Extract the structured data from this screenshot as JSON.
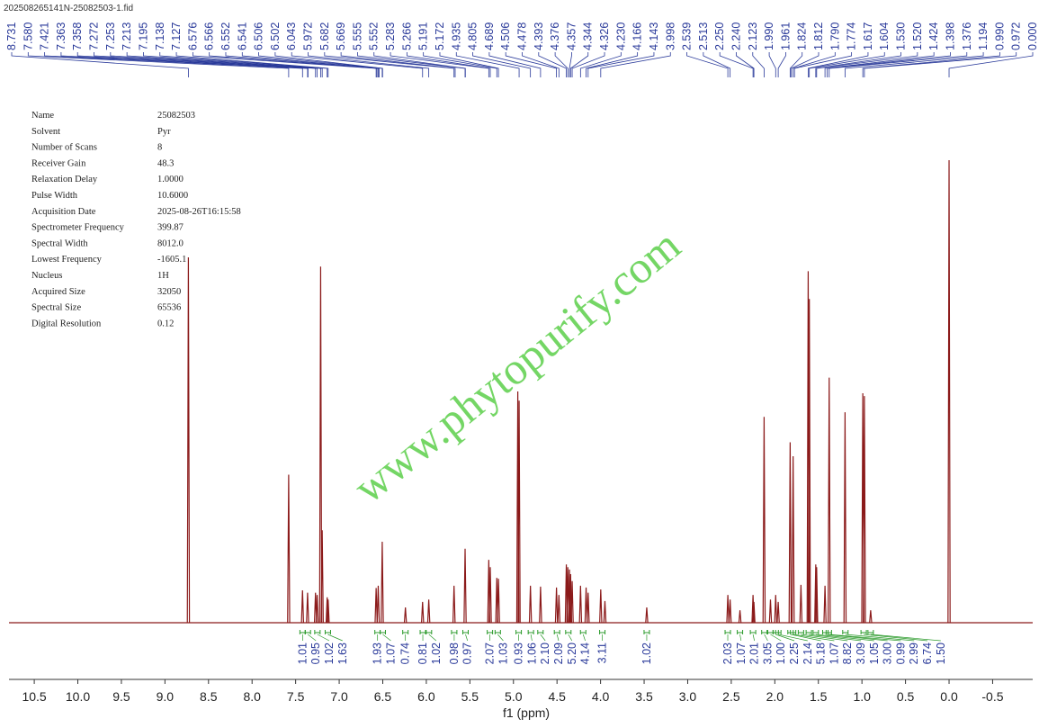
{
  "header": "202508265141N-25082503-1.fid",
  "watermark": "www.phytopurify.com",
  "parameters": [
    [
      "Name",
      "25082503"
    ],
    [
      "Solvent",
      "Pyr"
    ],
    [
      "Number of Scans",
      "8"
    ],
    [
      "Receiver Gain",
      "48.3"
    ],
    [
      "Relaxation Delay",
      "1.0000"
    ],
    [
      "Pulse Width",
      "10.6000"
    ],
    [
      "Acquisition Date",
      "2025-08-26T16:15:58"
    ],
    [
      "Spectrometer Frequency",
      "399.87"
    ],
    [
      "Spectral Width",
      "8012.0"
    ],
    [
      "Lowest Frequency",
      "-1605.1"
    ],
    [
      "Nucleus",
      "1H"
    ],
    [
      "Acquired Size",
      "32050"
    ],
    [
      "Spectral Size",
      "65536"
    ],
    [
      "Digital Resolution",
      "0.12"
    ]
  ],
  "chart_data": {
    "type": "nmr",
    "xlabel": "f1 (ppm)",
    "color": "#8b1a1a",
    "xlim": [
      10.79,
      -0.96
    ],
    "ylim": [
      0,
      100
    ],
    "xticks": [
      10.5,
      {
        "value": 10,
        "label": "10.0"
      },
      9.5,
      {
        "value": 9,
        "label": "9.0"
      },
      8.5,
      {
        "value": 8,
        "label": "8.0"
      },
      7.5,
      {
        "value": 7,
        "label": "7.0"
      },
      6.5,
      {
        "value": 6,
        "label": "6.0"
      },
      5.5,
      {
        "value": 5,
        "label": "5.0"
      },
      4.5,
      {
        "value": 4,
        "label": "4.0"
      },
      3.5,
      {
        "value": 3,
        "label": "3.0"
      },
      2.5,
      {
        "value": 2,
        "label": "2.0"
      },
      1.5,
      {
        "value": 1,
        "label": "1.0"
      },
      0.5,
      {
        "value": 0,
        "label": "0.0"
      },
      -0.5
    ],
    "peaks": {
      "x": [
        8.731,
        7.58,
        7.421,
        7.363,
        7.272,
        7.253,
        7.213,
        7.195,
        7.138,
        7.127,
        6.576,
        6.552,
        6.506,
        6.24,
        6.043,
        5.972,
        5.682,
        5.555,
        5.283,
        5.266,
        5.191,
        5.172,
        4.95,
        4.935,
        4.805,
        4.689,
        4.506,
        4.478,
        4.393,
        4.376,
        4.357,
        4.344,
        4.326,
        4.23,
        4.166,
        4.143,
        3.998,
        3.95,
        3.47,
        2.539,
        2.513,
        2.4,
        2.25,
        2.24,
        2.123,
        2.05,
        1.99,
        1.961,
        1.824,
        1.79,
        1.7,
        1.617,
        1.604,
        1.53,
        1.52,
        1.424,
        1.376,
        1.194,
        0.99,
        0.972,
        0.9,
        0
      ],
      "intensity": [
        79,
        32,
        7,
        6.5,
        6.5,
        6,
        77,
        20,
        5.5,
        5,
        7.5,
        8,
        17.5,
        3.3,
        4.5,
        5,
        8,
        16,
        13.6,
        12,
        9.7,
        9.5,
        50,
        48,
        8,
        7.8,
        7.6,
        6,
        12.6,
        12,
        11.5,
        10.5,
        9,
        8,
        7.6,
        6.5,
        7.2,
        4.7,
        3.3,
        6,
        5,
        2.7,
        6,
        4.5,
        44.5,
        5,
        6,
        4.5,
        39,
        36,
        8.2,
        76,
        70,
        12.6,
        12,
        8,
        53,
        45.5,
        49.6,
        49,
        2.7,
        100
      ]
    },
    "peak_labels": [
      8.731,
      {
        "value": 7.58,
        "label": "7.580"
      },
      7.421,
      7.363,
      7.358,
      7.272,
      7.253,
      7.213,
      7.195,
      7.138,
      7.127,
      6.576,
      6.566,
      6.552,
      6.541,
      6.506,
      6.502,
      6.043,
      5.972,
      5.682,
      5.669,
      5.555,
      5.552,
      5.283,
      5.266,
      5.191,
      5.172,
      4.935,
      4.805,
      4.689,
      4.506,
      4.478,
      4.393,
      4.376,
      4.357,
      4.344,
      4.326,
      {
        "value": 4.23,
        "label": "4.230"
      },
      4.166,
      4.143,
      3.998,
      2.539,
      2.513,
      {
        "value": 2.25,
        "label": "2.250"
      },
      {
        "value": 2.24,
        "label": "2.240"
      },
      2.123,
      {
        "value": 1.99,
        "label": "1.990"
      },
      1.961,
      1.824,
      1.812,
      {
        "value": 1.79,
        "label": "1.790"
      },
      1.774,
      1.617,
      1.604,
      {
        "value": 1.53,
        "label": "1.530"
      },
      {
        "value": 1.52,
        "label": "1.520"
      },
      1.424,
      1.398,
      1.376,
      1.194,
      {
        "value": 0.99,
        "label": "0.990"
      },
      0.972,
      {
        "value": 0,
        "label": "0.000"
      }
    ],
    "integrals": {
      "x": [
        7.42,
        7.36,
        7.25,
        7.13,
        6.56,
        6.5,
        6.24,
        6.04,
        5.97,
        5.68,
        5.55,
        5.27,
        5.18,
        4.94,
        4.8,
        4.69,
        4.5,
        4.37,
        4.2,
        3.98,
        3.47,
        2.54,
        2.4,
        2.25,
        2.12,
        2.05,
        1.99,
        1.96,
        1.82,
        1.79,
        1.7,
        1.61,
        1.53,
        1.42,
        1.38,
        1.19,
        0.98,
        0.9
      ],
      "values": [
        1.01,
        0.95,
        1.02,
        1.63,
        1.93,
        1.07,
        0.74,
        0.81,
        1.02,
        0.98,
        0.97,
        2.07,
        1.03,
        0.93,
        1.06,
        {
          "value": 2.1,
          "label": "2.10"
        },
        2.09,
        {
          "value": 5.2,
          "label": "5.20"
        },
        4.14,
        3.11,
        1.02,
        2.03,
        1.07,
        2.01,
        3.05,
        {
          "value": 1,
          "label": "1.00"
        },
        2.25,
        2.14,
        5.18,
        1.07,
        8.82,
        3.09,
        1.05,
        {
          "value": 3,
          "label": "3.00"
        },
        0.99,
        2.99,
        6.74,
        {
          "value": 1.5,
          "label": "1.50"
        }
      ]
    }
  }
}
